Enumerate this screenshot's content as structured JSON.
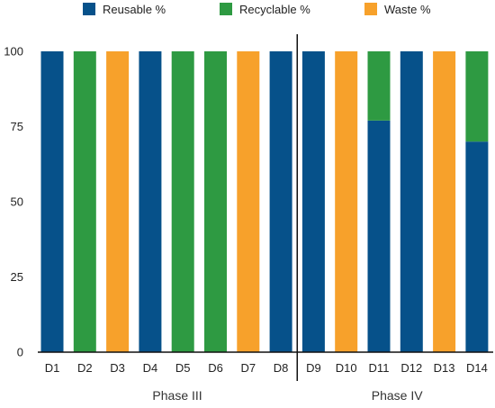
{
  "chart_data": {
    "type": "bar",
    "stacked": true,
    "categories": [
      "D1",
      "D2",
      "D3",
      "D4",
      "D5",
      "D6",
      "D7",
      "D8",
      "D9",
      "D10",
      "D11",
      "D12",
      "D13",
      "D14"
    ],
    "series": [
      {
        "name": "Reusable %",
        "color": "#06518a",
        "values": [
          100,
          0,
          0,
          100,
          0,
          0,
          0,
          100,
          100,
          0,
          77,
          100,
          0,
          70
        ]
      },
      {
        "name": "Recyclable %",
        "color": "#2e9a42",
        "values": [
          0,
          100,
          0,
          0,
          100,
          100,
          0,
          0,
          0,
          0,
          23,
          0,
          0,
          30
        ]
      },
      {
        "name": "Waste %",
        "color": "#f7a12b",
        "values": [
          0,
          0,
          100,
          0,
          0,
          0,
          100,
          0,
          0,
          100,
          0,
          0,
          100,
          0
        ]
      }
    ],
    "ylim": [
      0,
      100
    ],
    "yticks": [
      0,
      25,
      50,
      75,
      100
    ],
    "grid": false,
    "legend_position": "top",
    "groups": [
      {
        "label": "Phase III",
        "categories": [
          "D1",
          "D2",
          "D3",
          "D4",
          "D5",
          "D6",
          "D7",
          "D8"
        ]
      },
      {
        "label": "Phase IV",
        "categories": [
          "D9",
          "D10",
          "D11",
          "D12",
          "D13",
          "D14"
        ]
      }
    ]
  }
}
